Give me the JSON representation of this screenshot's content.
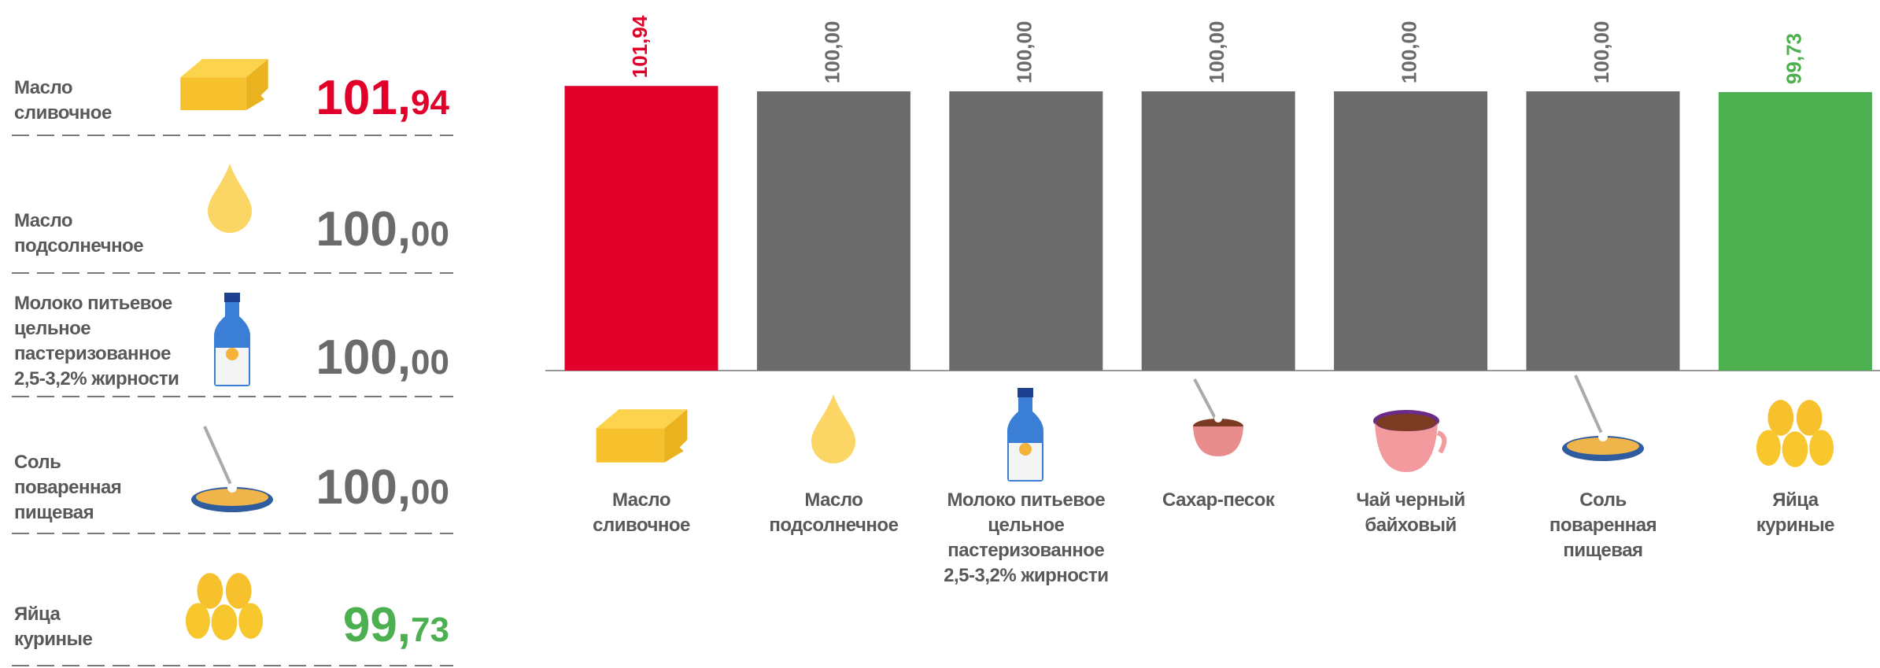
{
  "highlights": [
    {
      "name": "Масло\nсливочное",
      "value": "101,94",
      "color": "#e0002a"
    },
    {
      "name": "Масло\nподсолнечное",
      "value": "100,00",
      "color": "#6b6b6b"
    },
    {
      "name": "Молоко питьевое\nцельное\nпастеризованное\n2,5-3,2% жирности",
      "value": "100,00",
      "color": "#6b6b6b"
    },
    {
      "name": "Соль\nповаренная\nпищевая",
      "value": "100,00",
      "color": "#6b6b6b"
    },
    {
      "name": "Яйца\nкуриные",
      "value": "99,73",
      "color": "#4caf50"
    }
  ],
  "chart_data": {
    "type": "bar",
    "categories": [
      "Масло\nсливочное",
      "Масло\nподсолнечное",
      "Молоко питьевое\nцельное\nпастеризованное\n2,5-3,2% жирности",
      "Сахар-песок",
      "Чай черный\nбайховый",
      "Соль\nповаренная\nпищевая",
      "Яйца\nкуриные"
    ],
    "values": [
      101.94,
      100.0,
      100.0,
      100.0,
      100.0,
      100.0,
      99.73
    ],
    "value_labels": [
      "101,94",
      "100,00",
      "100,00",
      "100,00",
      "100,00",
      "100,00",
      "99,73"
    ],
    "colors": [
      "#e0002a",
      "#6b6b6b",
      "#6b6b6b",
      "#6b6b6b",
      "#6b6b6b",
      "#6b6b6b",
      "#4caf50"
    ],
    "ylim": [
      0,
      102
    ]
  }
}
